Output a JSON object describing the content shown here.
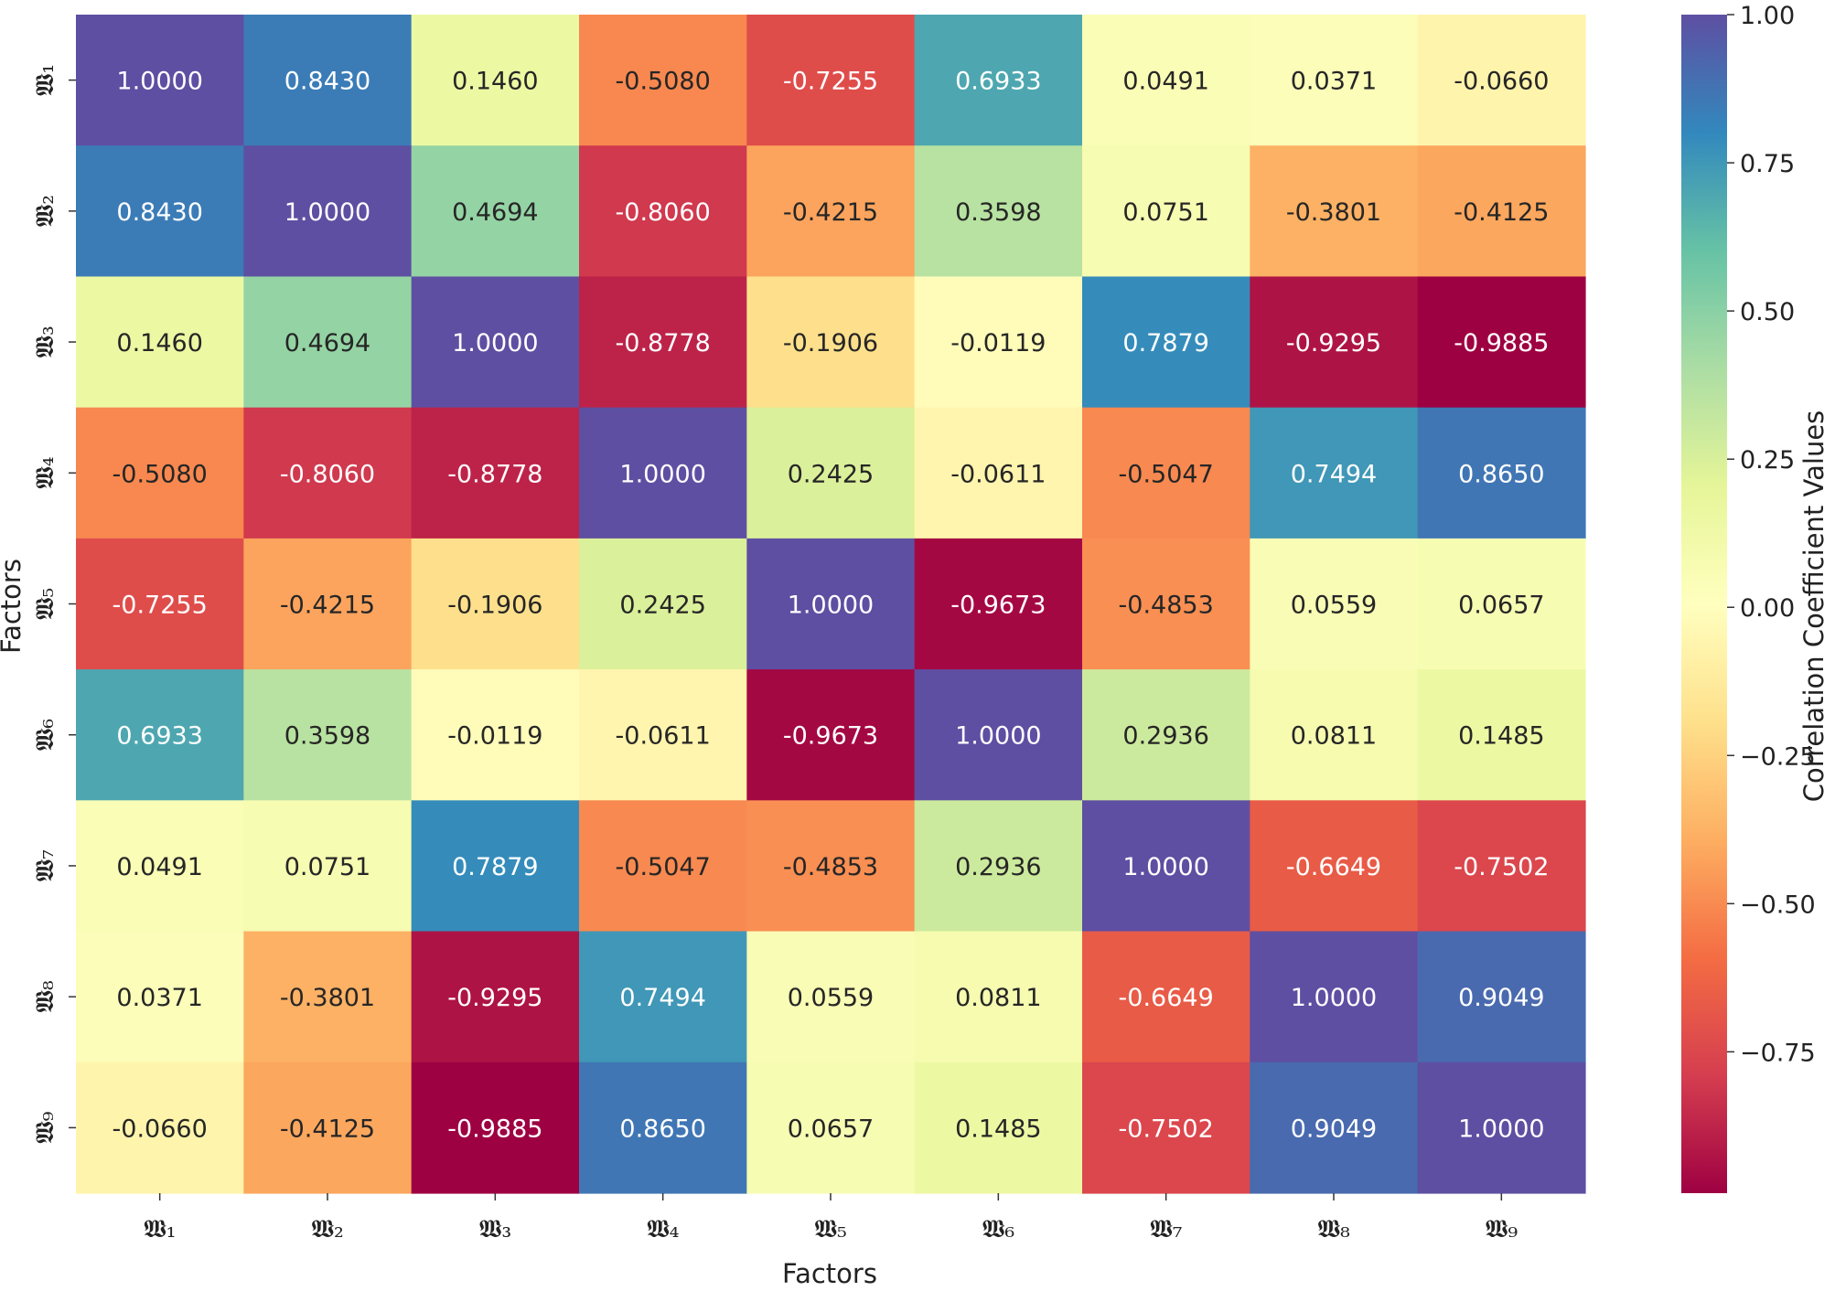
{
  "chart_data": {
    "type": "heatmap",
    "title": "",
    "xlabel": "Factors",
    "ylabel": "Factors",
    "x_labels": [
      "𝖂₁",
      "𝖂₂",
      "𝖂₃",
      "𝖂₄",
      "𝖂₅",
      "𝖂₆",
      "𝖂₇",
      "𝖂₈",
      "𝖂₉"
    ],
    "y_labels": [
      "𝖂₁",
      "𝖂₂",
      "𝖂₃",
      "𝖂₄",
      "𝖂₅",
      "𝖂₆",
      "𝖂₇",
      "𝖂₈",
      "𝖂₉"
    ],
    "values": [
      [
        1.0,
        0.843,
        0.146,
        -0.508,
        -0.7255,
        0.6933,
        0.0491,
        0.0371,
        -0.066
      ],
      [
        0.843,
        1.0,
        0.4694,
        -0.806,
        -0.4215,
        0.3598,
        0.0751,
        -0.3801,
        -0.4125
      ],
      [
        0.146,
        0.4694,
        1.0,
        -0.8778,
        -0.1906,
        -0.0119,
        0.7879,
        -0.9295,
        -0.9885
      ],
      [
        -0.508,
        -0.806,
        -0.8778,
        1.0,
        0.2425,
        -0.0611,
        -0.5047,
        0.7494,
        0.865
      ],
      [
        -0.7255,
        -0.4215,
        -0.1906,
        0.2425,
        1.0,
        -0.9673,
        -0.4853,
        0.0559,
        0.0657
      ],
      [
        0.6933,
        0.3598,
        -0.0119,
        -0.0611,
        -0.9673,
        1.0,
        0.2936,
        0.0811,
        0.1485
      ],
      [
        0.0491,
        0.0751,
        0.7879,
        -0.5047,
        -0.4853,
        0.2936,
        1.0,
        -0.6649,
        -0.7502
      ],
      [
        0.0371,
        -0.3801,
        -0.9295,
        0.7494,
        0.0559,
        0.0811,
        -0.6649,
        1.0,
        0.9049
      ],
      [
        -0.066,
        -0.4125,
        -0.9885,
        0.865,
        0.0657,
        0.1485,
        -0.7502,
        0.9049,
        1.0
      ]
    ],
    "value_format": "4 decimals",
    "colormap": "Spectral",
    "vmin": -0.9885,
    "vmax": 1.0,
    "colorbar": {
      "label": "Correlation Coefficient Values",
      "ticks": [
        1.0,
        0.75,
        0.5,
        0.25,
        0.0,
        -0.25,
        -0.5,
        -0.75
      ],
      "tick_labels": [
        "1.00",
        "0.75",
        "0.50",
        "0.25",
        "0.00",
        "−0.25",
        "−0.50",
        "−0.75"
      ],
      "placement": "right"
    },
    "grid": false
  }
}
